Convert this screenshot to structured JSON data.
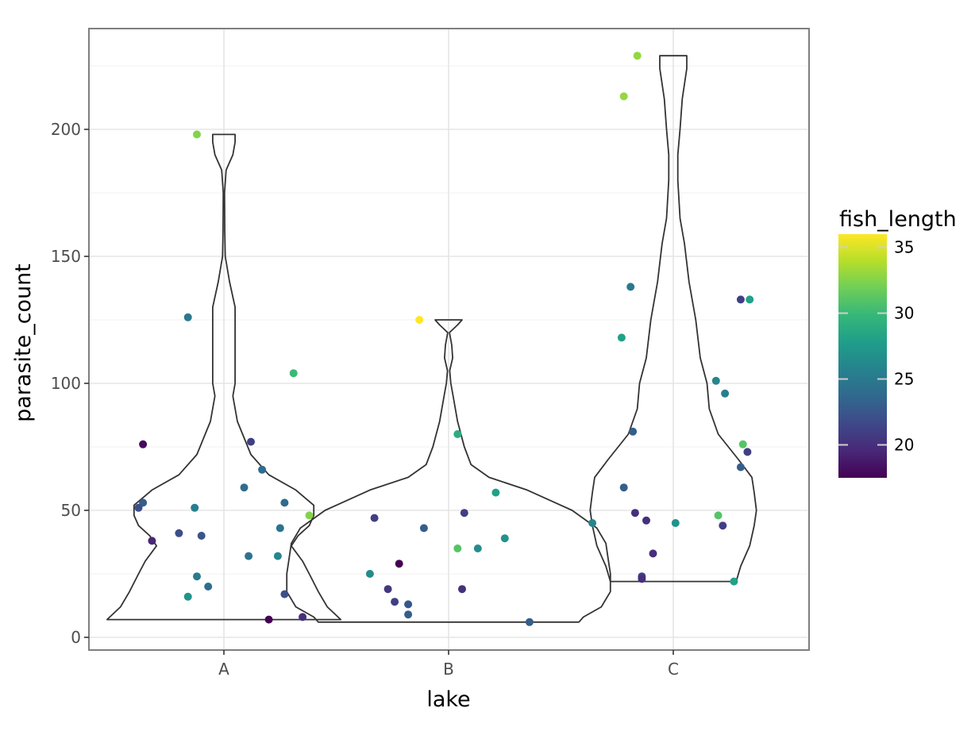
{
  "chart_data": {
    "type": "violin",
    "xlabel": "lake",
    "ylabel": "parasite_count",
    "categories": [
      "A",
      "B",
      "C"
    ],
    "ylim": [
      -10,
      235
    ],
    "yticks": [
      0,
      50,
      100,
      150,
      200
    ],
    "grid": true,
    "legend": {
      "title": "fish_length",
      "type": "colorbar",
      "placement": "right",
      "range": [
        17.5,
        36
      ],
      "ticks": [
        20,
        25,
        30,
        35
      ],
      "colormap": [
        "#440154",
        "#482878",
        "#3e4989",
        "#31688e",
        "#26828e",
        "#1f9e89",
        "#35b779",
        "#6ece58",
        "#b5de2b",
        "#fde725"
      ]
    },
    "violins": [
      {
        "category": "A",
        "ymin": 7,
        "ymax": 198,
        "profile": [
          [
            7,
            0.52
          ],
          [
            12,
            0.46
          ],
          [
            18,
            0.42
          ],
          [
            25,
            0.38
          ],
          [
            30,
            0.35
          ],
          [
            36,
            0.3
          ],
          [
            40,
            0.33
          ],
          [
            44,
            0.38
          ],
          [
            48,
            0.4
          ],
          [
            52,
            0.4
          ],
          [
            58,
            0.32
          ],
          [
            64,
            0.2
          ],
          [
            72,
            0.12
          ],
          [
            85,
            0.06
          ],
          [
            95,
            0.04
          ],
          [
            100,
            0.05
          ],
          [
            110,
            0.05
          ],
          [
            120,
            0.05
          ],
          [
            130,
            0.05
          ],
          [
            140,
            0.025
          ],
          [
            150,
            0.006
          ],
          [
            160,
            0.004
          ],
          [
            175,
            0.003
          ],
          [
            184,
            0.01
          ],
          [
            190,
            0.04
          ],
          [
            195,
            0.05
          ],
          [
            198,
            0.05
          ]
        ]
      },
      {
        "category": "B",
        "ymin": 6,
        "ymax": 125,
        "profile": [
          [
            6,
            0.58
          ],
          [
            8,
            0.6
          ],
          [
            12,
            0.68
          ],
          [
            18,
            0.72
          ],
          [
            25,
            0.72
          ],
          [
            31,
            0.71
          ],
          [
            37,
            0.7
          ],
          [
            43,
            0.66
          ],
          [
            50,
            0.55
          ],
          [
            58,
            0.35
          ],
          [
            63,
            0.18
          ],
          [
            68,
            0.1
          ],
          [
            75,
            0.07
          ],
          [
            85,
            0.04
          ],
          [
            95,
            0.02
          ],
          [
            100,
            0.01
          ],
          [
            105,
            0.005
          ],
          [
            110,
            0.018
          ],
          [
            115,
            0.014
          ],
          [
            120,
            0.004
          ],
          [
            123,
            0.04
          ],
          [
            125,
            0.06
          ]
        ]
      },
      {
        "category": "C",
        "ymin": 22,
        "ymax": 229,
        "profile": [
          [
            22,
            0.28
          ],
          [
            28,
            0.3
          ],
          [
            36,
            0.34
          ],
          [
            44,
            0.36
          ],
          [
            50,
            0.37
          ],
          [
            57,
            0.36
          ],
          [
            63,
            0.35
          ],
          [
            70,
            0.29
          ],
          [
            80,
            0.2
          ],
          [
            90,
            0.16
          ],
          [
            100,
            0.15
          ],
          [
            110,
            0.12
          ],
          [
            125,
            0.1
          ],
          [
            140,
            0.07
          ],
          [
            155,
            0.05
          ],
          [
            165,
            0.03
          ],
          [
            180,
            0.02
          ],
          [
            190,
            0.02
          ],
          [
            200,
            0.03
          ],
          [
            212,
            0.04
          ],
          [
            224,
            0.06
          ],
          [
            229,
            0.06
          ]
        ]
      }
    ],
    "points": [
      {
        "lake": "A",
        "jitter": -0.12,
        "y": 198,
        "length": 32.5
      },
      {
        "lake": "A",
        "jitter": -0.16,
        "y": 126,
        "length": 25
      },
      {
        "lake": "A",
        "jitter": 0.31,
        "y": 104,
        "length": 30
      },
      {
        "lake": "A",
        "jitter": -0.36,
        "y": 76,
        "length": 18
      },
      {
        "lake": "A",
        "jitter": 0.12,
        "y": 77,
        "length": 21
      },
      {
        "lake": "A",
        "jitter": 0.17,
        "y": 66,
        "length": 24
      },
      {
        "lake": "A",
        "jitter": 0.09,
        "y": 59,
        "length": 24
      },
      {
        "lake": "A",
        "jitter": -0.36,
        "y": 53,
        "length": 23
      },
      {
        "lake": "A",
        "jitter": 0.27,
        "y": 53,
        "length": 24
      },
      {
        "lake": "A",
        "jitter": -0.38,
        "y": 51,
        "length": 22
      },
      {
        "lake": "A",
        "jitter": -0.13,
        "y": 51,
        "length": 25.5
      },
      {
        "lake": "A",
        "jitter": 0.38,
        "y": 48,
        "length": 32.5
      },
      {
        "lake": "A",
        "jitter": 0.25,
        "y": 43,
        "length": 24.5
      },
      {
        "lake": "A",
        "jitter": -0.2,
        "y": 41,
        "length": 22
      },
      {
        "lake": "A",
        "jitter": -0.1,
        "y": 40,
        "length": 22.5
      },
      {
        "lake": "A",
        "jitter": -0.32,
        "y": 38,
        "length": 19.5
      },
      {
        "lake": "A",
        "jitter": 0.11,
        "y": 32,
        "length": 24.5
      },
      {
        "lake": "A",
        "jitter": 0.24,
        "y": 32,
        "length": 26
      },
      {
        "lake": "A",
        "jitter": -0.12,
        "y": 24,
        "length": 25
      },
      {
        "lake": "A",
        "jitter": -0.07,
        "y": 20,
        "length": 24
      },
      {
        "lake": "A",
        "jitter": 0.27,
        "y": 17,
        "length": 22
      },
      {
        "lake": "A",
        "jitter": -0.16,
        "y": 16,
        "length": 27
      },
      {
        "lake": "A",
        "jitter": 0.35,
        "y": 8,
        "length": 20
      },
      {
        "lake": "A",
        "jitter": 0.2,
        "y": 7,
        "length": 17.5
      },
      {
        "lake": "B",
        "jitter": -0.13,
        "y": 125,
        "length": 36
      },
      {
        "lake": "B",
        "jitter": 0.04,
        "y": 80,
        "length": 29
      },
      {
        "lake": "B",
        "jitter": 0.21,
        "y": 57,
        "length": 28
      },
      {
        "lake": "B",
        "jitter": 0.07,
        "y": 49,
        "length": 21
      },
      {
        "lake": "B",
        "jitter": -0.33,
        "y": 47,
        "length": 21
      },
      {
        "lake": "B",
        "jitter": -0.11,
        "y": 43,
        "length": 23
      },
      {
        "lake": "B",
        "jitter": 0.25,
        "y": 39,
        "length": 27
      },
      {
        "lake": "B",
        "jitter": 0.13,
        "y": 35,
        "length": 26.5
      },
      {
        "lake": "B",
        "jitter": 0.04,
        "y": 35,
        "length": 31
      },
      {
        "lake": "B",
        "jitter": -0.22,
        "y": 29,
        "length": 17.5
      },
      {
        "lake": "B",
        "jitter": -0.35,
        "y": 25,
        "length": 26.5
      },
      {
        "lake": "B",
        "jitter": -0.27,
        "y": 19,
        "length": 20.5
      },
      {
        "lake": "B",
        "jitter": 0.06,
        "y": 19,
        "length": 20
      },
      {
        "lake": "B",
        "jitter": -0.24,
        "y": 14,
        "length": 21
      },
      {
        "lake": "B",
        "jitter": -0.18,
        "y": 13,
        "length": 22.5
      },
      {
        "lake": "B",
        "jitter": -0.18,
        "y": 9,
        "length": 23
      },
      {
        "lake": "B",
        "jitter": 0.36,
        "y": 6,
        "length": 23
      },
      {
        "lake": "C",
        "jitter": -0.16,
        "y": 229,
        "length": 33
      },
      {
        "lake": "C",
        "jitter": -0.22,
        "y": 213,
        "length": 33
      },
      {
        "lake": "C",
        "jitter": -0.19,
        "y": 138,
        "length": 25
      },
      {
        "lake": "C",
        "jitter": 0.3,
        "y": 133,
        "length": 21
      },
      {
        "lake": "C",
        "jitter": 0.34,
        "y": 133,
        "length": 28
      },
      {
        "lake": "C",
        "jitter": -0.23,
        "y": 118,
        "length": 28
      },
      {
        "lake": "C",
        "jitter": 0.19,
        "y": 101,
        "length": 26
      },
      {
        "lake": "C",
        "jitter": 0.23,
        "y": 96,
        "length": 25.5
      },
      {
        "lake": "C",
        "jitter": -0.18,
        "y": 81,
        "length": 23
      },
      {
        "lake": "C",
        "jitter": 0.31,
        "y": 76,
        "length": 31
      },
      {
        "lake": "C",
        "jitter": 0.33,
        "y": 73,
        "length": 21
      },
      {
        "lake": "C",
        "jitter": 0.3,
        "y": 67,
        "length": 23
      },
      {
        "lake": "C",
        "jitter": -0.22,
        "y": 59,
        "length": 23
      },
      {
        "lake": "C",
        "jitter": -0.17,
        "y": 49,
        "length": 20
      },
      {
        "lake": "C",
        "jitter": 0.2,
        "y": 48,
        "length": 31
      },
      {
        "lake": "C",
        "jitter": -0.12,
        "y": 46,
        "length": 20
      },
      {
        "lake": "C",
        "jitter": -0.36,
        "y": 45,
        "length": 26
      },
      {
        "lake": "C",
        "jitter": 0.01,
        "y": 45,
        "length": 27
      },
      {
        "lake": "C",
        "jitter": 0.22,
        "y": 44,
        "length": 21
      },
      {
        "lake": "C",
        "jitter": -0.09,
        "y": 33,
        "length": 20
      },
      {
        "lake": "C",
        "jitter": -0.14,
        "y": 24,
        "length": 21
      },
      {
        "lake": "C",
        "jitter": -0.14,
        "y": 23,
        "length": 20
      },
      {
        "lake": "C",
        "jitter": 0.27,
        "y": 22,
        "length": 28
      }
    ]
  }
}
